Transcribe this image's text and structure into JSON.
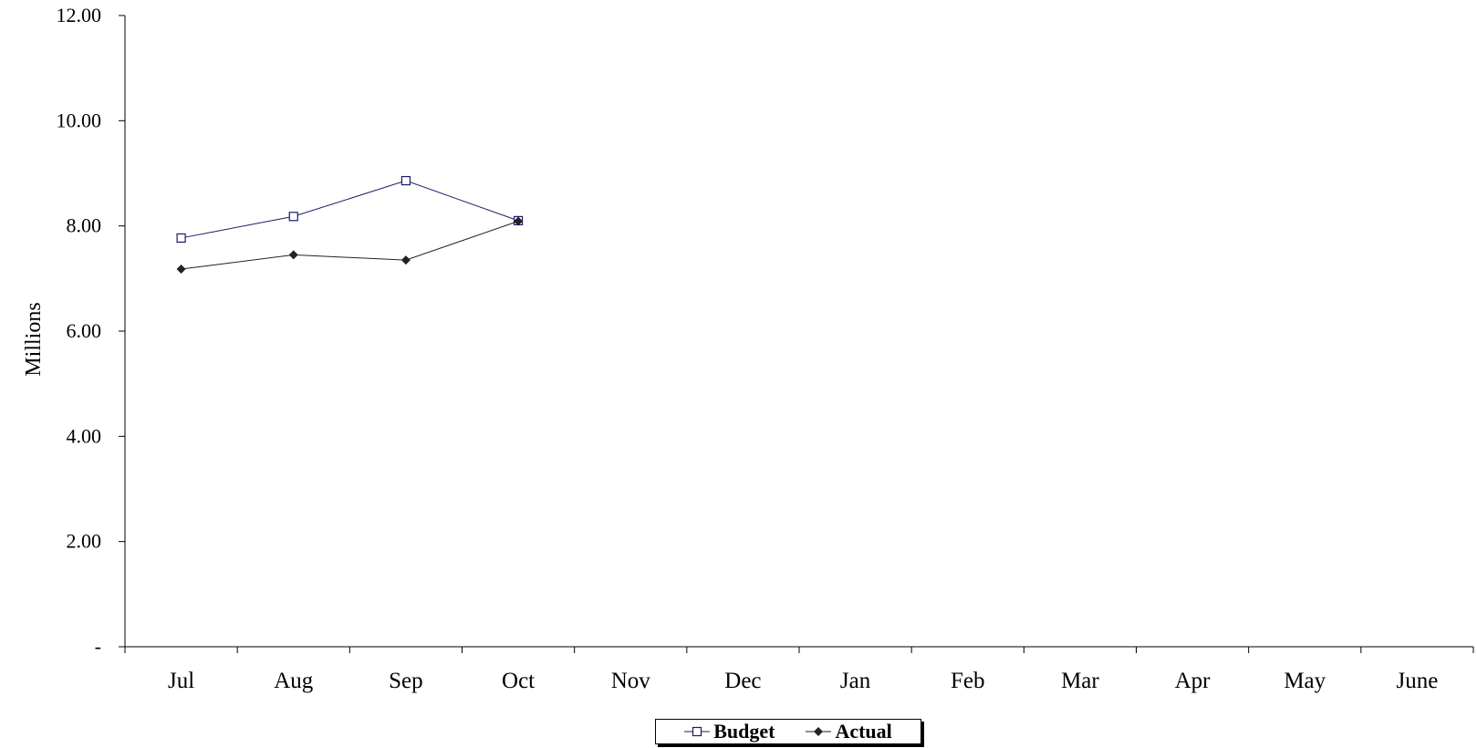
{
  "chart_data": {
    "type": "line",
    "categories": [
      "Jul",
      "Aug",
      "Sep",
      "Oct",
      "Nov",
      "Dec",
      "Jan",
      "Feb",
      "Mar",
      "Apr",
      "May",
      "June"
    ],
    "series": [
      {
        "name": "Budget",
        "values": [
          7.77,
          8.18,
          8.86,
          8.1,
          null,
          null,
          null,
          null,
          null,
          null,
          null,
          null
        ],
        "color": "#1a1a6e",
        "marker": "open-square"
      },
      {
        "name": "Actual",
        "values": [
          7.18,
          7.45,
          7.35,
          8.09,
          null,
          null,
          null,
          null,
          null,
          null,
          null,
          null
        ],
        "color": "#222222",
        "marker": "filled-diamond"
      }
    ],
    "ylabel": "Millions",
    "ylim": [
      0,
      12
    ],
    "yticks": [
      0,
      2,
      4,
      6,
      8,
      10,
      12
    ],
    "ytick_labels": [
      "-",
      "2.00",
      "4.00",
      "6.00",
      "8.00",
      "10.00",
      "12.00"
    ],
    "grid": false,
    "legend_position": "bottom-center"
  }
}
